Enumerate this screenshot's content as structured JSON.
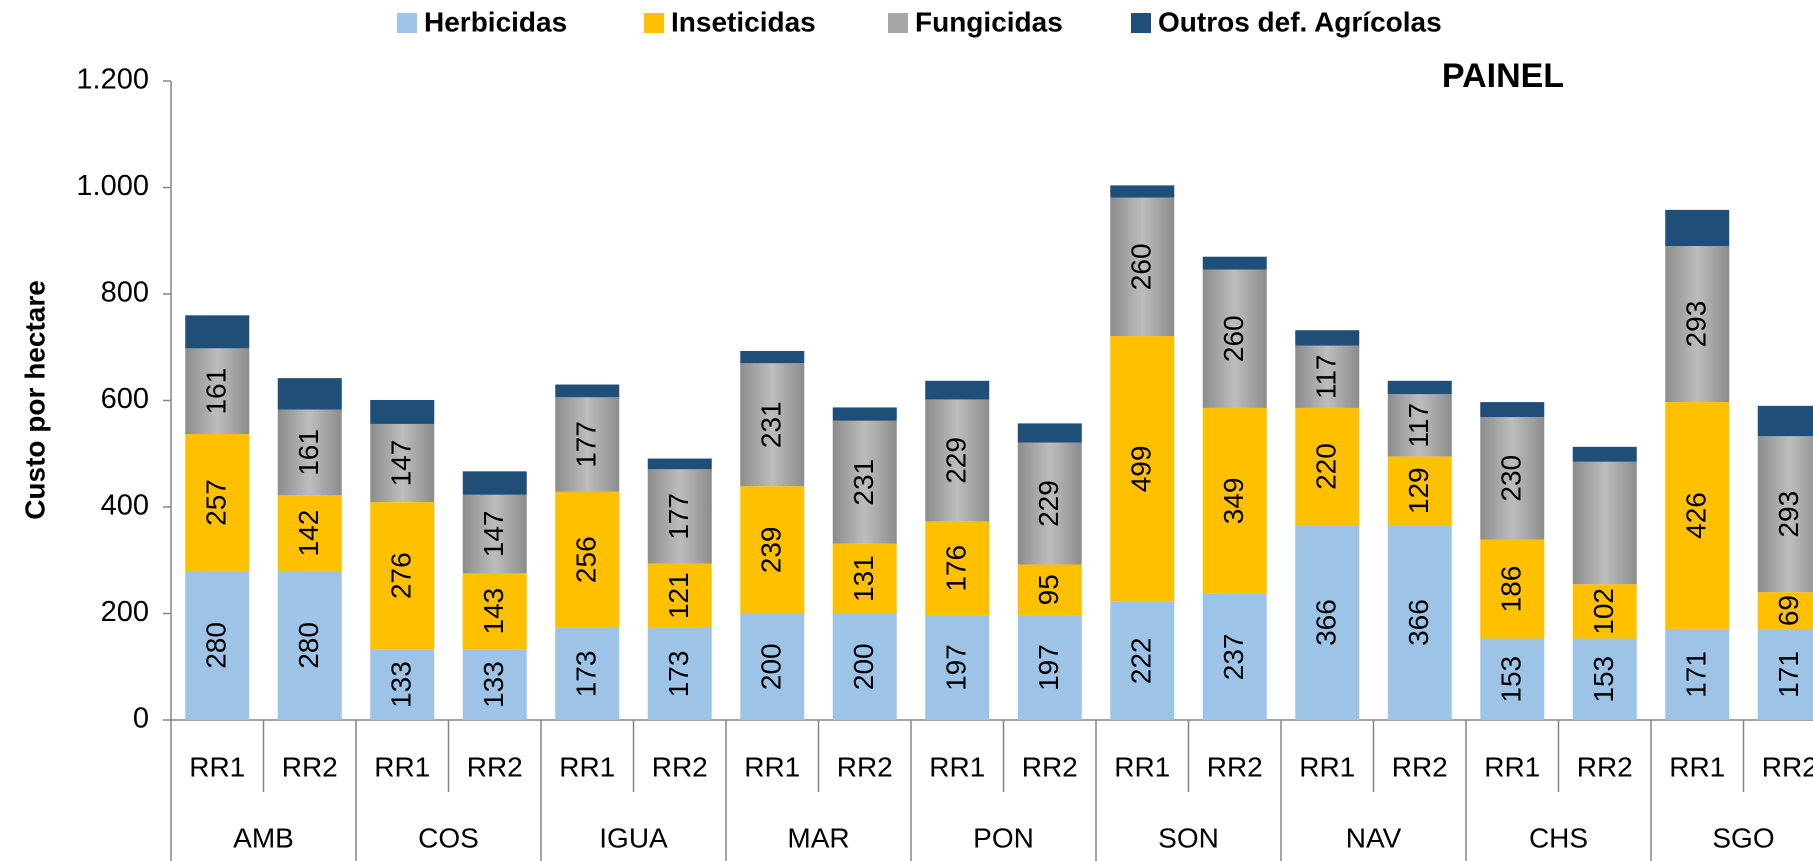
{
  "chart_data": {
    "type": "stacked_bar",
    "title": "PAINEL",
    "y_label": "Custo por hectare",
    "categories": [
      "RR1",
      "RR2",
      "RR1",
      "RR2",
      "RR1",
      "RR2",
      "RR1",
      "RR2",
      "RR1",
      "RR2",
      "RR1",
      "RR2",
      "RR1",
      "RR2",
      "RR1",
      "RR2",
      "RR1",
      "RR2"
    ],
    "groups": [
      "AMB",
      "COS",
      "IGUA",
      "MAR",
      "PON",
      "SON",
      "NAV",
      "CHS",
      "SGO"
    ],
    "series": [
      {
        "name": "Herbicidas",
        "color": "#9dc3e6",
        "labels": true,
        "values": [
          280,
          280,
          133,
          133,
          173,
          173,
          200,
          200,
          197,
          197,
          222,
          237,
          366,
          366,
          153,
          153,
          171,
          171
        ]
      },
      {
        "name": "Inseticidas",
        "color": "#ffc000",
        "labels": true,
        "values": [
          257,
          142,
          276,
          143,
          256,
          121,
          239,
          131,
          176,
          95,
          499,
          349,
          220,
          129,
          186,
          102,
          426,
          69
        ]
      },
      {
        "name": "Fungicidas",
        "color": "#a6a6a6",
        "labels": true,
        "values": [
          161,
          161,
          147,
          147,
          177,
          177,
          231,
          231,
          229,
          229,
          260,
          260,
          117,
          117,
          230,
          230,
          293,
          293
        ],
        "value_labels": [
          "161",
          "161",
          "147",
          "147",
          "177",
          "177",
          "231",
          "231",
          "229",
          "229",
          "260",
          "260",
          "117",
          "117",
          "230",
          null,
          "293",
          "293"
        ]
      },
      {
        "name": "Outros def. Agrícolas",
        "color": "#1f4e79",
        "labels": false,
        "values": [
          62,
          59,
          45,
          44,
          24,
          20,
          23,
          25,
          35,
          36,
          23,
          24,
          29,
          25,
          28,
          28,
          68,
          57
        ]
      }
    ],
    "ylim": [
      0,
      1200
    ],
    "yticks": [
      0,
      200,
      400,
      600,
      800,
      {
        "value": 1000,
        "label": "1.000"
      },
      {
        "value": 1200,
        "label": "1.200"
      }
    ],
    "legend": "top"
  }
}
